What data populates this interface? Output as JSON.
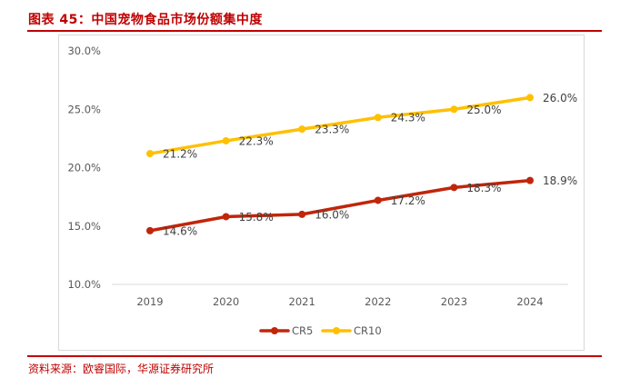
{
  "figure": {
    "title": "图表 45：中国宠物食品市场份额集中度",
    "source": "资料来源：欧睿国际，华源证券研究所"
  },
  "colors": {
    "accent": "#c00000",
    "cr5": "#c0260b",
    "cr10": "#ffc000",
    "axis_text": "#595959",
    "label_text": "#404040",
    "grid": "#d9d9d9"
  },
  "chart_data": {
    "type": "line",
    "title": "",
    "xlabel": "",
    "ylabel": "",
    "categories": [
      "2019",
      "2020",
      "2021",
      "2022",
      "2023",
      "2024"
    ],
    "y_ticks": [
      "10.0%",
      "15.0%",
      "20.0%",
      "25.0%",
      "30.0%"
    ],
    "ylim": [
      10,
      30
    ],
    "grid": false,
    "legend_position": "bottom",
    "series": [
      {
        "name": "CR5",
        "values": [
          14.6,
          15.8,
          16.0,
          17.2,
          18.3,
          18.9
        ],
        "labels": [
          "14.6%",
          "15.8%",
          "16.0%",
          "17.2%",
          "18.3%",
          "18.9%"
        ]
      },
      {
        "name": "CR10",
        "values": [
          21.2,
          22.3,
          23.3,
          24.3,
          25.0,
          26.0
        ],
        "labels": [
          "21.2%",
          "22.3%",
          "23.3%",
          "24.3%",
          "25.0%",
          "26.0%"
        ]
      }
    ]
  }
}
